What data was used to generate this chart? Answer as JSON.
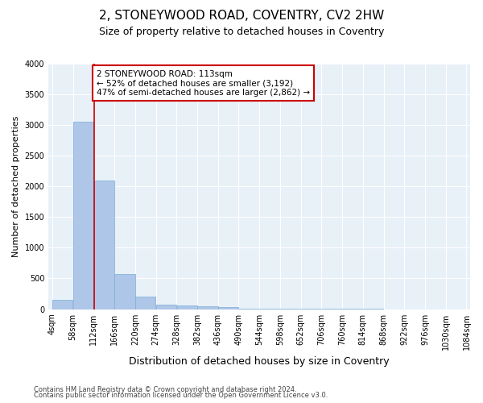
{
  "title": "2, STONEYWOOD ROAD, COVENTRY, CV2 2HW",
  "subtitle": "Size of property relative to detached houses in Coventry",
  "xlabel": "Distribution of detached houses by size in Coventry",
  "ylabel": "Number of detached properties",
  "bin_edges": [
    4,
    58,
    112,
    166,
    220,
    274,
    328,
    382,
    436,
    490,
    544,
    598,
    652,
    706,
    760,
    814,
    868,
    922,
    976,
    1030,
    1084
  ],
  "bar_heights": [
    150,
    3050,
    2100,
    575,
    210,
    75,
    60,
    50,
    30,
    10,
    5,
    3,
    2,
    1,
    1,
    1,
    0,
    0,
    0,
    0
  ],
  "bar_color": "#aec6e8",
  "bar_edge_color": "#7aadd4",
  "property_line_x": 113,
  "property_line_color": "#cc0000",
  "annotation_text": "2 STONEYWOOD ROAD: 113sqm\n← 52% of detached houses are smaller (3,192)\n47% of semi-detached houses are larger (2,862) →",
  "annotation_box_color": "#cc0000",
  "ylim": [
    0,
    4000
  ],
  "yticks": [
    0,
    500,
    1000,
    1500,
    2000,
    2500,
    3000,
    3500,
    4000
  ],
  "bg_color": "#e8f0f8",
  "footnote1": "Contains HM Land Registry data © Crown copyright and database right 2024.",
  "footnote2": "Contains public sector information licensed under the Open Government Licence v3.0.",
  "title_fontsize": 11,
  "subtitle_fontsize": 9,
  "xlabel_fontsize": 9,
  "ylabel_fontsize": 8,
  "tick_fontsize": 7,
  "annotation_fontsize": 7.5,
  "footnote_fontsize": 6
}
